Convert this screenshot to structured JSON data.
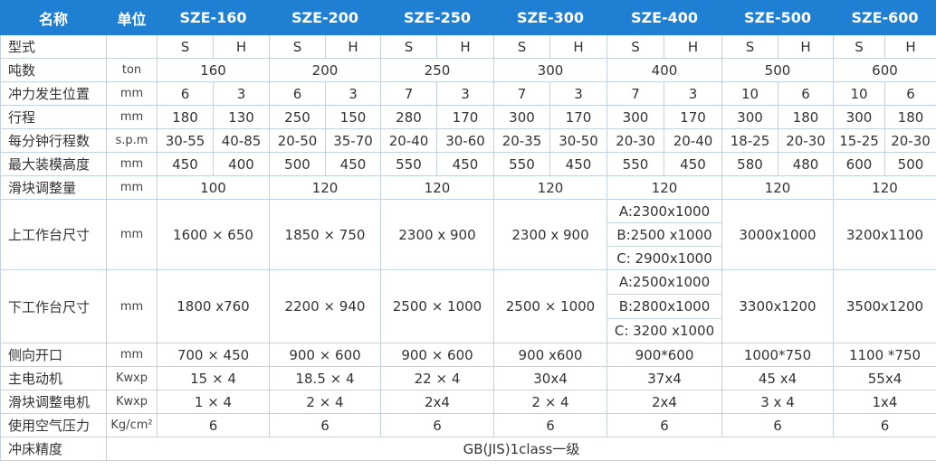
{
  "header": {
    "name": "名称",
    "unit": "单位",
    "models": [
      "SZE-160",
      "SZE-200",
      "SZE-250",
      "SZE-300",
      "SZE-400",
      "SZE-500",
      "SZE-600"
    ]
  },
  "rows": [
    {
      "label": "型式",
      "cells": [
        "S",
        "H",
        "S",
        "H",
        "S",
        "H",
        "S",
        "H",
        "S",
        "H",
        "S",
        "H",
        "S",
        "H"
      ]
    },
    {
      "label": "吨数",
      "unit": "ton",
      "cells": [
        "160",
        "200",
        "250",
        "300",
        "400",
        "500",
        "600"
      ]
    },
    {
      "label": "冲力发生位置",
      "unit": "mm",
      "cells": [
        "6",
        "3",
        "6",
        "3",
        "7",
        "3",
        "7",
        "3",
        "7",
        "3",
        "10",
        "6",
        "10",
        "6"
      ]
    },
    {
      "label": "行程",
      "unit": "mm",
      "cells": [
        "180",
        "130",
        "250",
        "150",
        "280",
        "170",
        "300",
        "170",
        "300",
        "170",
        "300",
        "180",
        "300",
        "180"
      ]
    },
    {
      "label": "每分钟行程数",
      "unit": "s.p.m",
      "cells": [
        "30-55",
        "40-85",
        "20-50",
        "35-70",
        "20-40",
        "30-60",
        "20-35",
        "30-50",
        "20-30",
        "20-40",
        "18-25",
        "20-30",
        "15-25",
        "20-30"
      ]
    },
    {
      "label": "最大装模高度",
      "unit": "mm",
      "cells": [
        "450",
        "400",
        "500",
        "450",
        "550",
        "450",
        "550",
        "450",
        "550",
        "450",
        "580",
        "480",
        "600",
        "500"
      ]
    },
    {
      "label": "滑块调整量",
      "unit": "mm",
      "cells": [
        "100",
        "120",
        "120",
        "120",
        "120",
        "120",
        "120"
      ]
    },
    {
      "label": "上工作台尺寸",
      "unit": "mm",
      "cells": [
        "1600 × 650",
        "1850 × 750",
        "2300 x 900",
        "2300 x 900",
        [
          "A:2300x1000",
          "B:2500 x1000",
          "C: 2900x1000"
        ],
        "3000x1000",
        "3200x1100"
      ]
    },
    {
      "label": "下工作台尺寸",
      "unit": "mm",
      "cells": [
        "1800 x760",
        "2200 × 940",
        "2500 × 1000",
        "2500 × 1000",
        [
          "A:2500x1000",
          "B:2800x1000",
          "C: 3200 x1000"
        ],
        "3300x1200",
        "3500x1200"
      ]
    },
    {
      "label": "侧向开口",
      "unit": "mm",
      "cells": [
        "700 × 450",
        "900 × 600",
        "900 × 600",
        "900 x600",
        "900*600",
        "1000*750",
        "1100 *750"
      ]
    },
    {
      "label": "主电动机",
      "unit": "Kwxp",
      "cells": [
        "15 × 4",
        "18.5 × 4",
        "22 × 4",
        "30x4",
        "37x4",
        "45 x4",
        "55x4"
      ]
    },
    {
      "label": "滑块调整电机",
      "unit": "Kwxp",
      "cells": [
        "1 × 4",
        "2 × 4",
        "2x4",
        "2 × 4",
        "2x4",
        "3 x 4",
        "1x4"
      ]
    },
    {
      "label": "使用空气压力",
      "unit": "Kg/cm²",
      "cells": [
        "6",
        "6",
        "6",
        "6",
        "6",
        "6",
        "6"
      ]
    },
    {
      "label": "冲床精度",
      "cells": [
        "GB(JIS)1class一级"
      ]
    }
  ]
}
